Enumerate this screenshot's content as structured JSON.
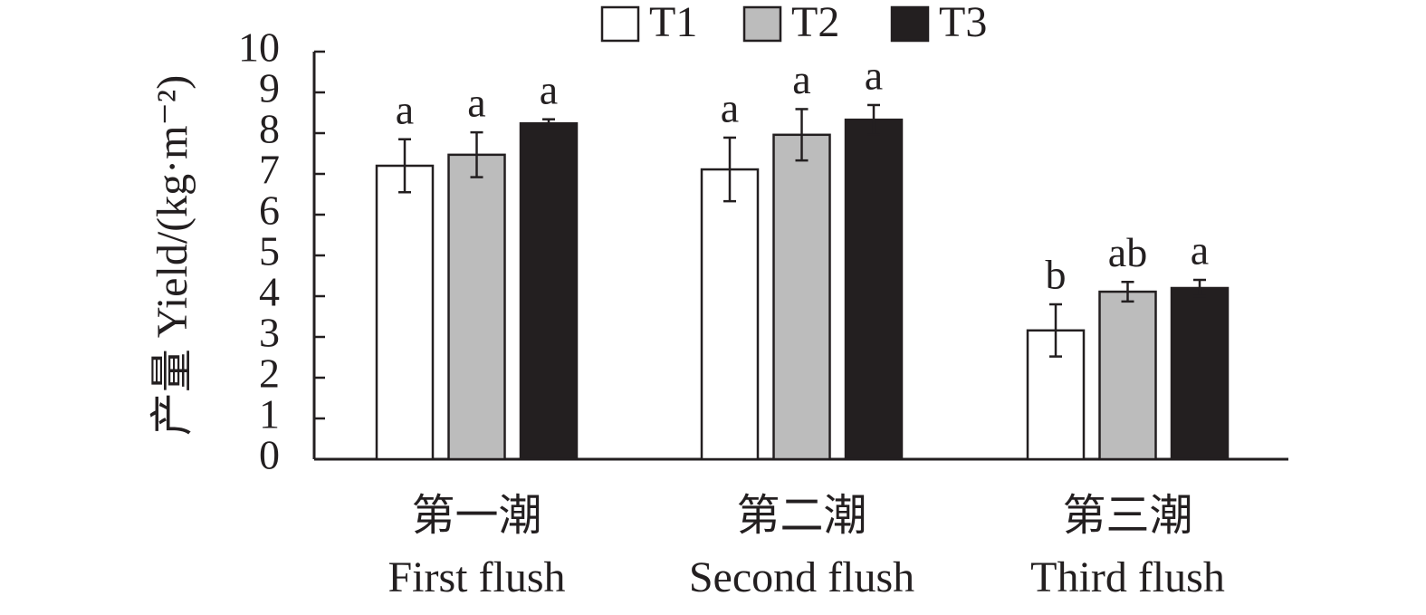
{
  "chart_data": {
    "type": "bar",
    "ylabel": "产量 Yield/(kg·m⁻²)",
    "categories": [
      [
        "第一潮",
        "First flush"
      ],
      [
        "第二潮",
        "Second flush"
      ],
      [
        "第三潮",
        "Third flush"
      ]
    ],
    "series": [
      {
        "name": "T1",
        "color": "#ffffff",
        "values": [
          7.2,
          7.11,
          3.16
        ],
        "errors": [
          0.65,
          0.78,
          0.64
        ],
        "letters": [
          "a",
          "a",
          "b"
        ]
      },
      {
        "name": "T2",
        "color": "#bcbcbc",
        "values": [
          7.47,
          7.96,
          4.11
        ],
        "errors": [
          0.55,
          0.63,
          0.24
        ],
        "letters": [
          "a",
          "a",
          "ab"
        ]
      },
      {
        "name": "T3",
        "color": "#231f20",
        "values": [
          8.24,
          8.33,
          4.2
        ],
        "errors": [
          0.1,
          0.36,
          0.2
        ],
        "letters": [
          "a",
          "a",
          "a"
        ]
      }
    ],
    "ylim": [
      0,
      10
    ],
    "yticks": [
      0,
      1,
      2,
      3,
      4,
      5,
      6,
      7,
      8,
      9,
      10
    ]
  }
}
